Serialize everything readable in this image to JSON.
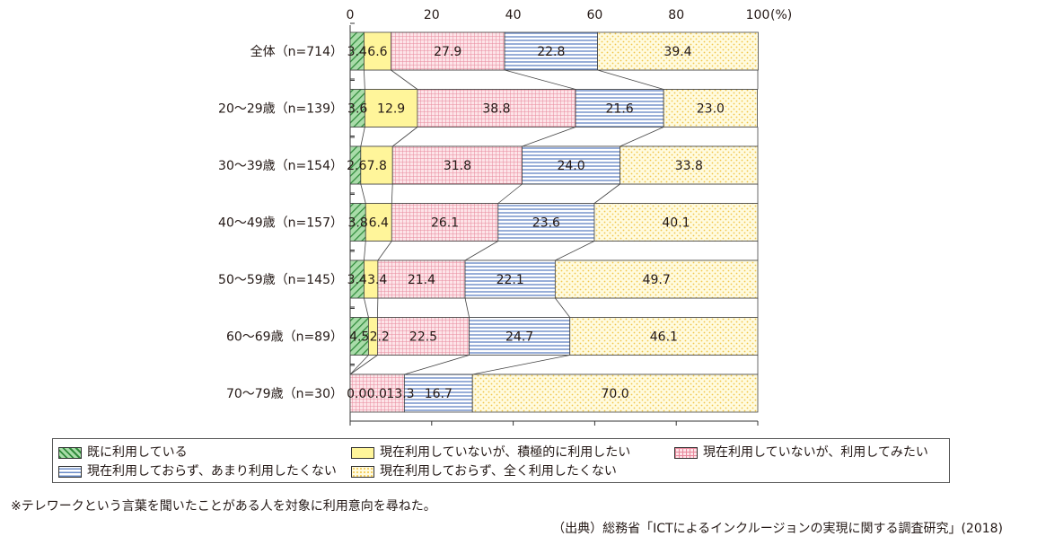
{
  "chart_data": {
    "type": "bar",
    "orientation": "horizontal",
    "stacked": true,
    "percent": true,
    "x_ticks": [
      "0",
      "20",
      "40",
      "60",
      "80",
      "100"
    ],
    "x_unit": "(%)",
    "xlim": [
      0,
      100
    ],
    "categories": [
      "全体（n=714）",
      "20～29歳（n=139）",
      "30～39歳（n=154）",
      "40～49歳（n=157）",
      "50～59歳（n=145）",
      "60～69歳（n=89）",
      "70～79歳（n=30）"
    ],
    "series": [
      {
        "name": "既に利用している",
        "values": [
          3.4,
          3.6,
          2.6,
          3.8,
          3.4,
          4.5,
          0.0
        ],
        "labels": [
          "3.4",
          "3.6",
          "2.6",
          "3.8",
          "3.4",
          "4.5",
          "0.0"
        ]
      },
      {
        "name": "現在利用していないが、積極的に利用したい",
        "values": [
          6.6,
          12.9,
          7.8,
          6.4,
          3.4,
          2.2,
          0.0
        ],
        "labels": [
          "6.6",
          "12.9",
          "7.8",
          "6.4",
          "3.4",
          "2.2",
          "0.0"
        ]
      },
      {
        "name": "現在利用していないが、利用してみたい",
        "values": [
          27.9,
          38.8,
          31.8,
          26.1,
          21.4,
          22.5,
          13.3
        ],
        "labels": [
          "27.9",
          "38.8",
          "31.8",
          "26.1",
          "21.4",
          "22.5",
          "13.3"
        ]
      },
      {
        "name": "現在利用しておらず、あまり利用したくない",
        "values": [
          22.8,
          21.6,
          24.0,
          23.6,
          22.1,
          24.7,
          16.7
        ],
        "labels": [
          "22.8",
          "21.6",
          "24.0",
          "23.6",
          "22.1",
          "24.7",
          "16.7"
        ]
      },
      {
        "name": "現在利用しておらず、全く利用したくない",
        "values": [
          39.4,
          23.0,
          33.8,
          40.1,
          49.7,
          46.1,
          70.0
        ],
        "labels": [
          "39.4",
          "23.0",
          "33.8",
          "40.1",
          "49.7",
          "46.1",
          "70.0"
        ]
      }
    ],
    "legend_position": "bottom",
    "grid": false
  },
  "styles": {
    "series": [
      {
        "fill": "#8ccf8c",
        "pattern": "diagonal",
        "ink": "#2f8a3a"
      },
      {
        "fill": "#fff5a0",
        "pattern": "none",
        "ink": "#e6d24a"
      },
      {
        "fill": "#fbe0e5",
        "pattern": "grid",
        "ink": "#e07088"
      },
      {
        "fill": "#ffffff",
        "pattern": "hstripe",
        "ink": "#6b8cc8"
      },
      {
        "fill": "#fffbe0",
        "pattern": "dots",
        "ink": "#f0c040"
      }
    ]
  },
  "legend": {
    "items": [
      "既に利用している",
      "現在利用していないが、積極的に利用したい",
      "現在利用していないが、利用してみたい",
      "現在利用しておらず、あまり利用したくない",
      "現在利用しておらず、全く利用したくない"
    ]
  },
  "note": "※テレワークという言葉を聞いたことがある人を対象に利用意向を尋ねた。",
  "source": "（出典）総務省「ICTによるインクルージョンの実現に関する調査研究」(2018)"
}
